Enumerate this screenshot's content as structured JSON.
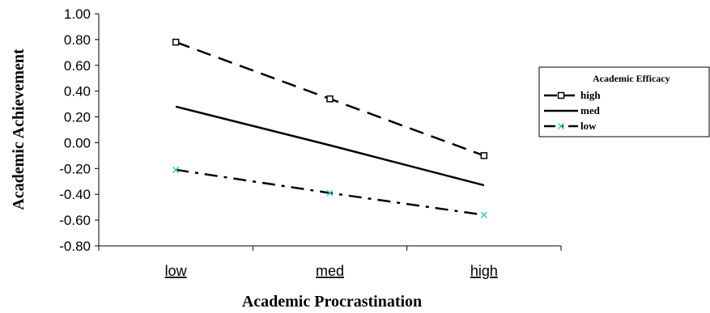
{
  "chart_data": {
    "type": "line",
    "title": "",
    "xlabel": "Academic Procrastination",
    "ylabel": "Academic Achievement",
    "categories": [
      "low",
      "med",
      "high"
    ],
    "ylim": [
      -0.8,
      1.0
    ],
    "y_ticks": [
      "1.00",
      "0.80",
      "0.60",
      "0.40",
      "0.20",
      "0.00",
      "-0.20",
      "-0.40",
      "-0.60",
      "-0.80"
    ],
    "grid": false,
    "legend": {
      "title": "Academic Efficacy",
      "placement": "right"
    },
    "series": [
      {
        "name": "high",
        "values": [
          0.78,
          0.34,
          -0.1
        ],
        "style": "dashed",
        "marker": "square",
        "color": "#000000"
      },
      {
        "name": "med",
        "values": [
          0.28,
          -0.02,
          -0.33
        ],
        "style": "solid",
        "marker": "none",
        "color": "#000000"
      },
      {
        "name": "low",
        "values": [
          -0.21,
          -0.39,
          -0.56
        ],
        "style": "dashdot",
        "marker": "x",
        "color": "#000000",
        "marker_color": "#33cccc"
      }
    ]
  }
}
